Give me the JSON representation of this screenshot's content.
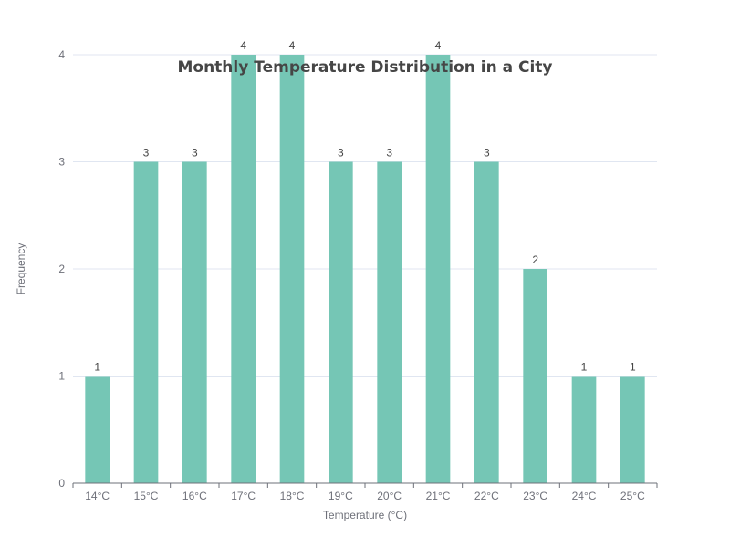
{
  "chart_data": {
    "type": "bar",
    "title": "Monthly Temperature Distribution in a City",
    "xlabel": "Temperature (°C)",
    "ylabel": "Frequency",
    "categories": [
      "14°C",
      "15°C",
      "16°C",
      "17°C",
      "18°C",
      "19°C",
      "20°C",
      "21°C",
      "22°C",
      "23°C",
      "24°C",
      "25°C"
    ],
    "values": [
      1,
      3,
      3,
      4,
      4,
      3,
      3,
      4,
      3,
      2,
      1,
      1
    ],
    "ylim": [
      0,
      4
    ],
    "yticks": [
      "0",
      "1",
      "2",
      "3",
      "4"
    ],
    "grid": true,
    "show_data_labels": true,
    "bar_color": "#75c6b5"
  }
}
